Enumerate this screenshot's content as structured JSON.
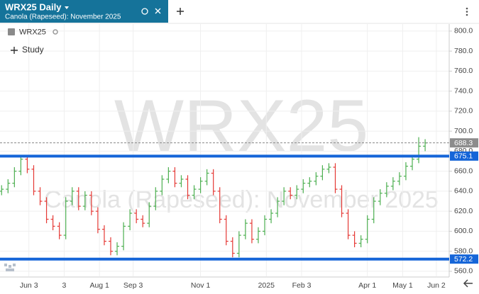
{
  "chart_data": {
    "type": "ohlc",
    "title": "WRX25 Daily",
    "subtitle": "Canola (Rapeseed): November 2025",
    "symbol": "WRX25",
    "study_button": "Study",
    "x": [
      1,
      5,
      9,
      13,
      17,
      21,
      25,
      29,
      33,
      37,
      41,
      45,
      49,
      53,
      57,
      61,
      65,
      69,
      73,
      77,
      81,
      85,
      89,
      93,
      97,
      101,
      105,
      109,
      113,
      117,
      121,
      125,
      129,
      133,
      137,
      141,
      145,
      149,
      153,
      157,
      161,
      165,
      169,
      173,
      177,
      181,
      185,
      189,
      193,
      197,
      201,
      205,
      209,
      213,
      217,
      221,
      225,
      229,
      233,
      237,
      241,
      245,
      249,
      253,
      257,
      261,
      265
    ],
    "open": [
      640,
      642,
      648,
      660,
      672,
      662,
      640,
      630,
      612,
      605,
      596,
      630,
      640,
      625,
      636,
      620,
      602,
      590,
      580,
      585,
      605,
      618,
      612,
      608,
      625,
      640,
      652,
      660,
      648,
      652,
      636,
      642,
      650,
      658,
      640,
      612,
      590,
      578,
      596,
      608,
      592,
      600,
      612,
      618,
      630,
      640,
      636,
      642,
      648,
      650,
      655,
      662,
      664,
      642,
      618,
      596,
      588,
      592,
      612,
      630,
      638,
      645,
      650,
      655,
      665,
      672,
      685
    ],
    "high": [
      646,
      652,
      664,
      676,
      676,
      666,
      644,
      634,
      616,
      609,
      634,
      644,
      644,
      640,
      640,
      624,
      606,
      594,
      589,
      609,
      622,
      622,
      616,
      629,
      644,
      656,
      664,
      664,
      656,
      656,
      646,
      654,
      662,
      662,
      644,
      616,
      594,
      600,
      612,
      612,
      604,
      616,
      622,
      634,
      644,
      644,
      646,
      652,
      654,
      659,
      666,
      668,
      668,
      646,
      622,
      600,
      596,
      616,
      634,
      642,
      649,
      654,
      659,
      669,
      676,
      694,
      692
    ],
    "low": [
      636,
      638,
      644,
      656,
      658,
      636,
      626,
      608,
      601,
      592,
      592,
      626,
      621,
      621,
      616,
      598,
      586,
      576,
      576,
      581,
      601,
      608,
      604,
      604,
      621,
      636,
      648,
      644,
      644,
      632,
      632,
      638,
      646,
      636,
      608,
      586,
      574,
      574,
      592,
      588,
      588,
      596,
      608,
      614,
      626,
      632,
      632,
      638,
      644,
      646,
      651,
      658,
      638,
      614,
      592,
      584,
      584,
      588,
      608,
      626,
      634,
      641,
      646,
      651,
      661,
      668,
      680
    ],
    "close": [
      642,
      648,
      660,
      672,
      662,
      640,
      630,
      612,
      605,
      596,
      630,
      640,
      625,
      636,
      620,
      602,
      590,
      580,
      585,
      605,
      618,
      612,
      608,
      625,
      640,
      652,
      660,
      648,
      652,
      636,
      642,
      650,
      658,
      640,
      612,
      590,
      578,
      596,
      608,
      592,
      600,
      612,
      618,
      630,
      640,
      636,
      642,
      648,
      650,
      655,
      662,
      664,
      642,
      618,
      596,
      588,
      592,
      612,
      630,
      638,
      645,
      650,
      655,
      665,
      672,
      685,
      688.3
    ],
    "up_color": "#4caf50",
    "down_color": "#e53935",
    "xlim": [
      0,
      280
    ],
    "xticks": [
      {
        "value": 18,
        "label": "Jun 3"
      },
      {
        "value": 40,
        "label": "3"
      },
      {
        "value": 62,
        "label": "Aug 1"
      },
      {
        "value": 83,
        "label": "Sep 3"
      },
      {
        "value": 125,
        "label": "Nov 1"
      },
      {
        "value": 166,
        "label": "2025"
      },
      {
        "value": 188,
        "label": "Feb 3"
      },
      {
        "value": 229,
        "label": "Apr 1"
      },
      {
        "value": 251,
        "label": "May 1"
      },
      {
        "value": 272,
        "label": "Jun 2"
      }
    ],
    "ylim": [
      555,
      807
    ],
    "yticks": [
      {
        "value": 560,
        "label": "560.0"
      },
      {
        "value": 580,
        "label": "580.0"
      },
      {
        "value": 600,
        "label": "600.0"
      },
      {
        "value": 620,
        "label": "620.0"
      },
      {
        "value": 640,
        "label": "640.0"
      },
      {
        "value": 660,
        "label": "660.0"
      },
      {
        "value": 680,
        "label": "680.0"
      },
      {
        "value": 700,
        "label": "700.0"
      },
      {
        "value": 720,
        "label": "720.0"
      },
      {
        "value": 740,
        "label": "740.0"
      },
      {
        "value": 760,
        "label": "760.0"
      },
      {
        "value": 780,
        "label": "780.0"
      },
      {
        "value": 800,
        "label": "800.0"
      }
    ],
    "grid": true,
    "reference_lines": [
      {
        "value": 675.1,
        "color": "#1565d8"
      },
      {
        "value": 572.2,
        "color": "#1565d8"
      }
    ],
    "last_price": 688.3
  }
}
